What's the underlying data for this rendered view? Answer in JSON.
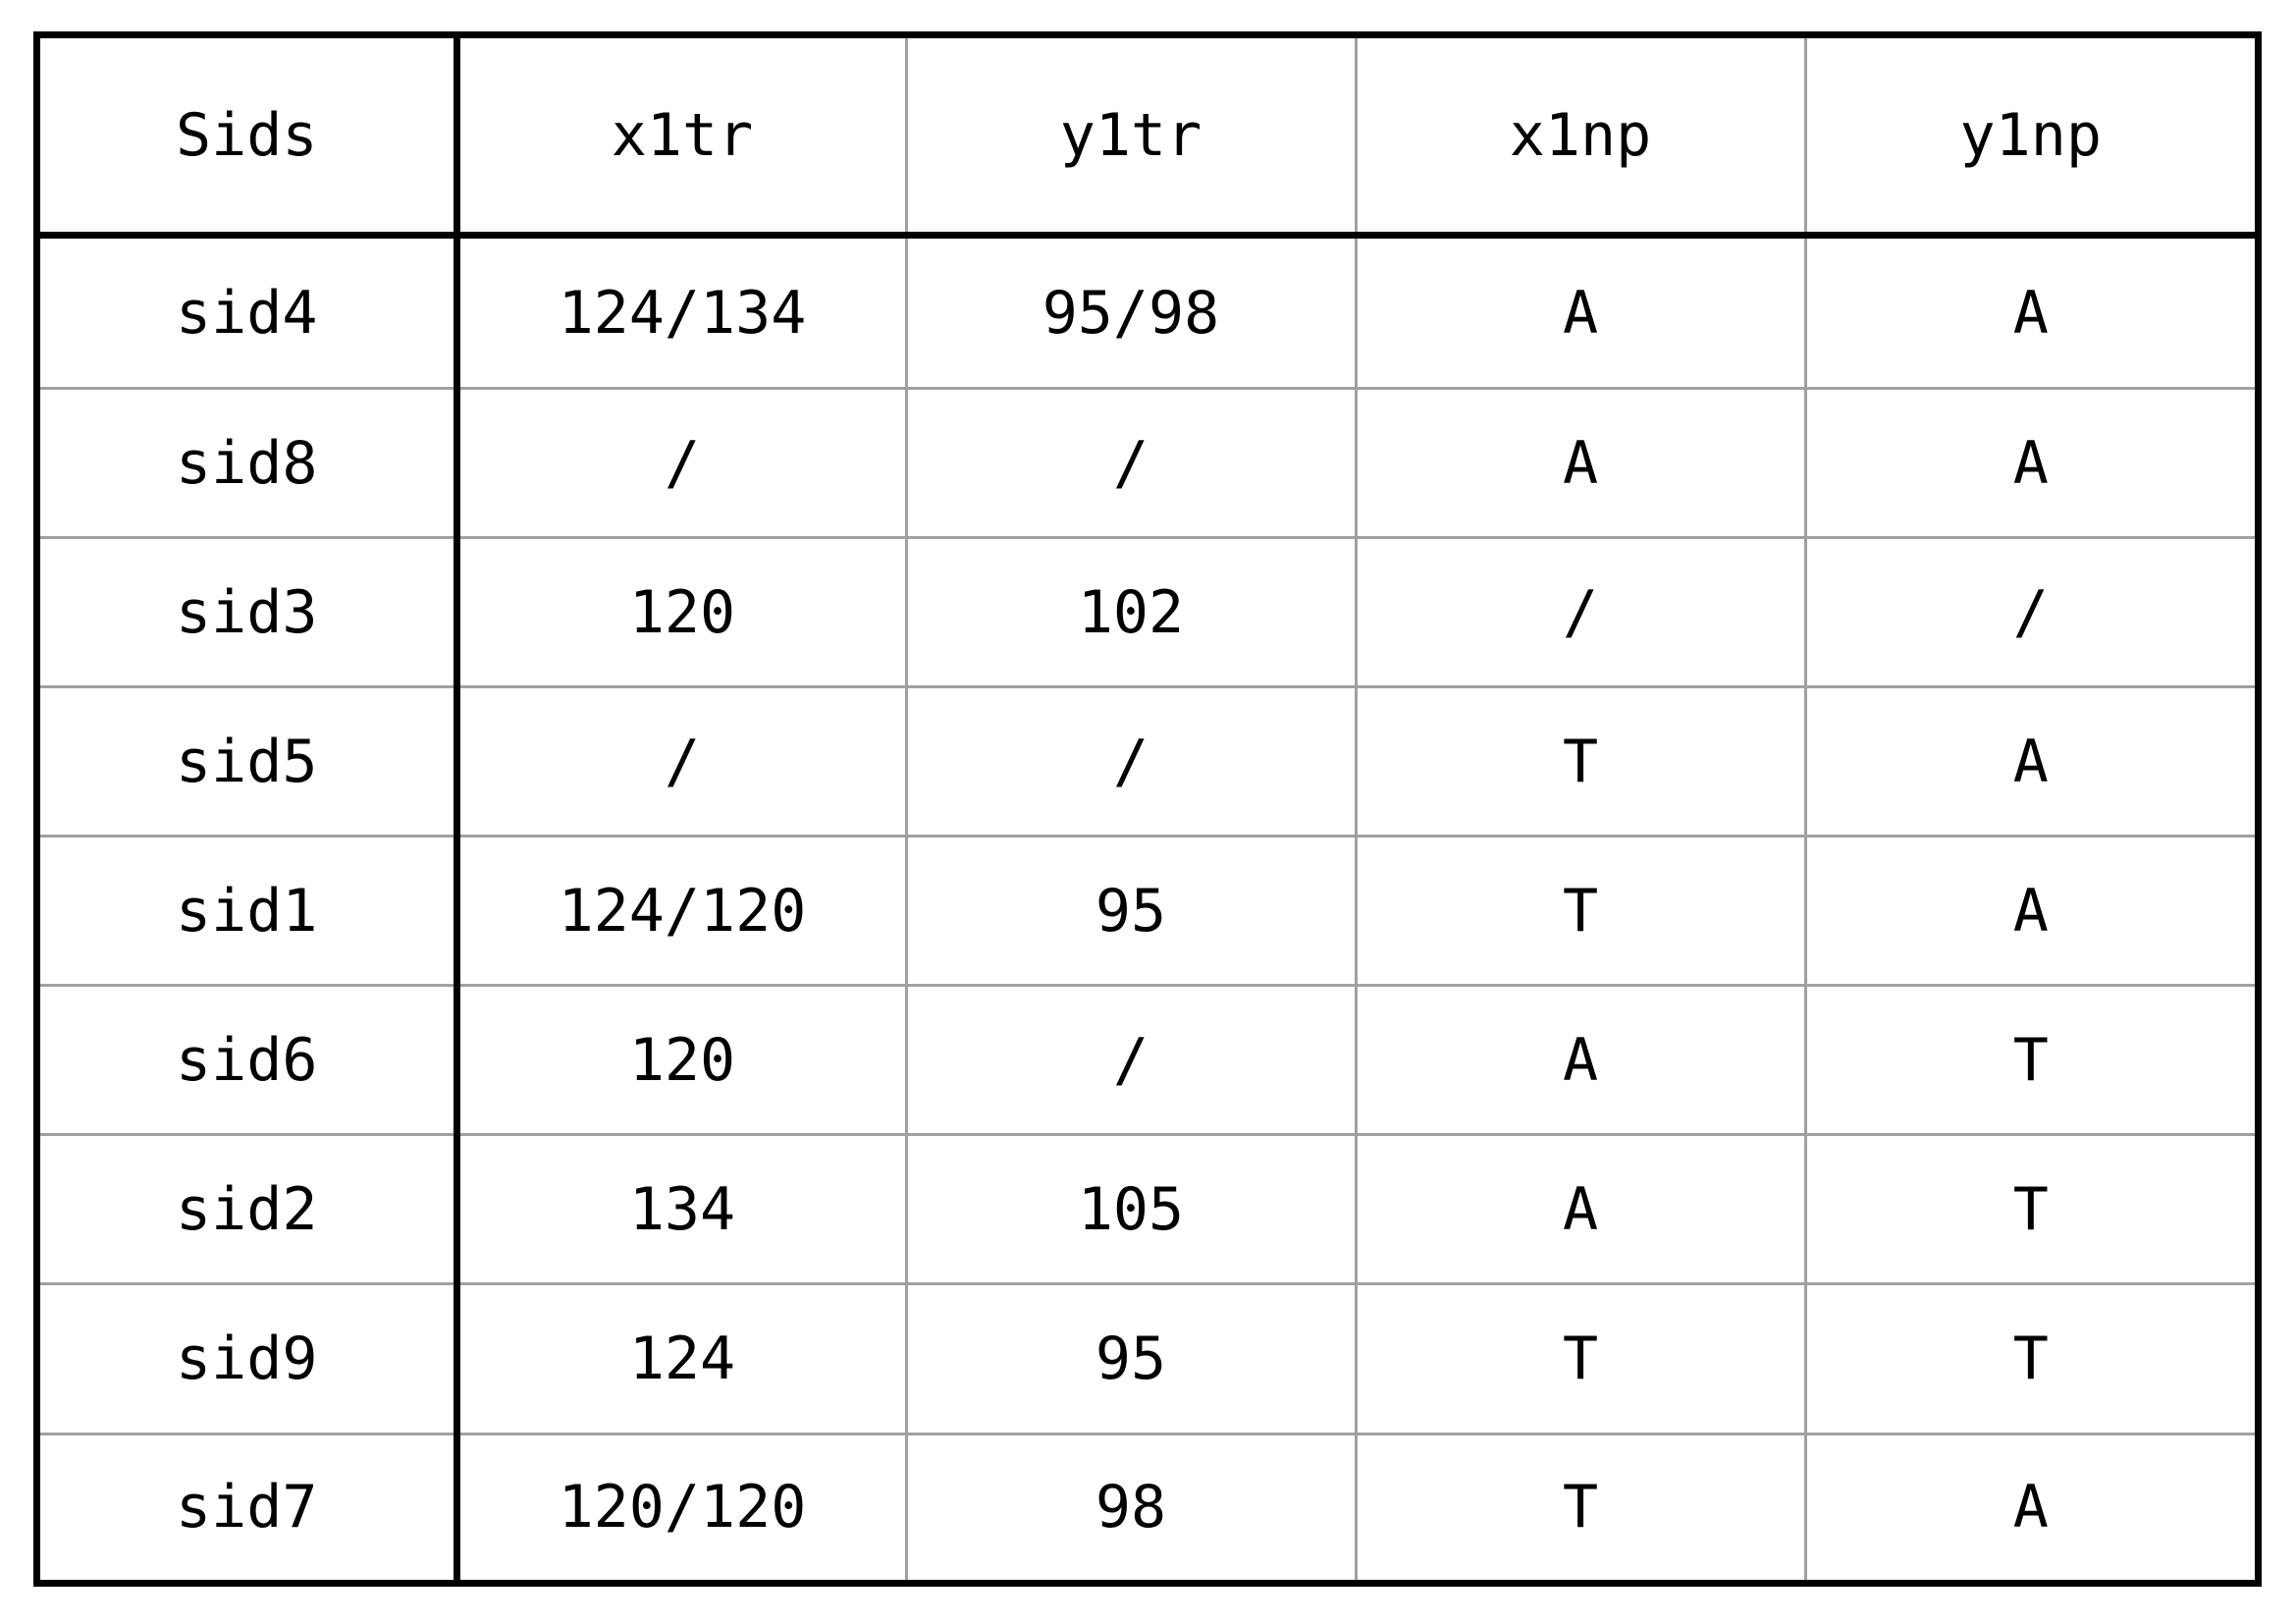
{
  "table": {
    "columns": [
      "Sids",
      "x1tr",
      "y1tr",
      "x1np",
      "y1np"
    ],
    "rows": [
      [
        "sid4",
        "124/134",
        "95/98",
        "A",
        "A"
      ],
      [
        "sid8",
        "/",
        "/",
        "A",
        "A"
      ],
      [
        "sid3",
        "120",
        "102",
        "/",
        "/"
      ],
      [
        "sid5",
        "/",
        "/",
        "T",
        "A"
      ],
      [
        "sid1",
        "124/120",
        "95",
        "T",
        "A"
      ],
      [
        "sid6",
        "120",
        "/",
        "A",
        "T"
      ],
      [
        "sid2",
        "134",
        "105",
        "A",
        "T"
      ],
      [
        "sid9",
        "124",
        "95",
        "T",
        "T"
      ],
      [
        "sid7",
        "120/120",
        "98",
        "T",
        "A"
      ]
    ]
  },
  "colors": {
    "outer_border": "#000000",
    "inner_grid": "#a0a0a0",
    "text": "#000000",
    "background": "#ffffff"
  }
}
